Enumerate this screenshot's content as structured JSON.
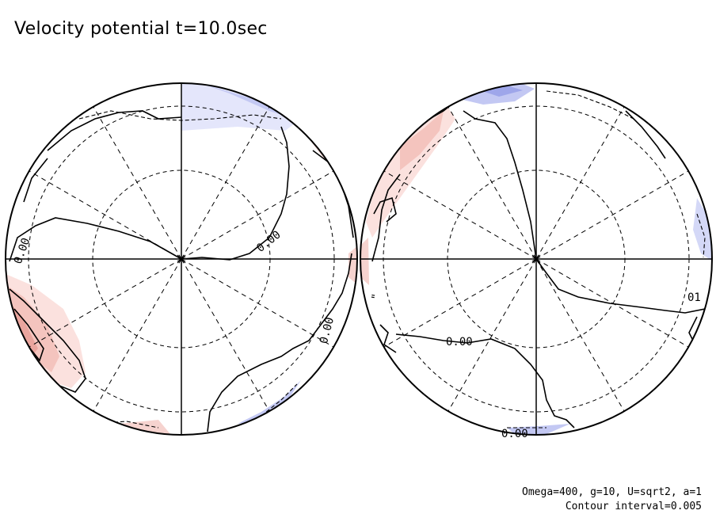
{
  "title": "Velocity potential t=10.0sec",
  "footer": {
    "params": "Omega=400, g=10, U=sqrt2, a=1",
    "interval": "Contour interval=0.005"
  },
  "contour_labels": {
    "left_a": "0.00",
    "left_b": "0.00",
    "left_c": "0.00",
    "right_a": "0.00",
    "right_b": "0.00",
    "right_c": "01"
  },
  "colors": {
    "positive_fill": "#f6c9c4",
    "negative_fill": "#c9cdf5",
    "line": "#000000"
  }
}
